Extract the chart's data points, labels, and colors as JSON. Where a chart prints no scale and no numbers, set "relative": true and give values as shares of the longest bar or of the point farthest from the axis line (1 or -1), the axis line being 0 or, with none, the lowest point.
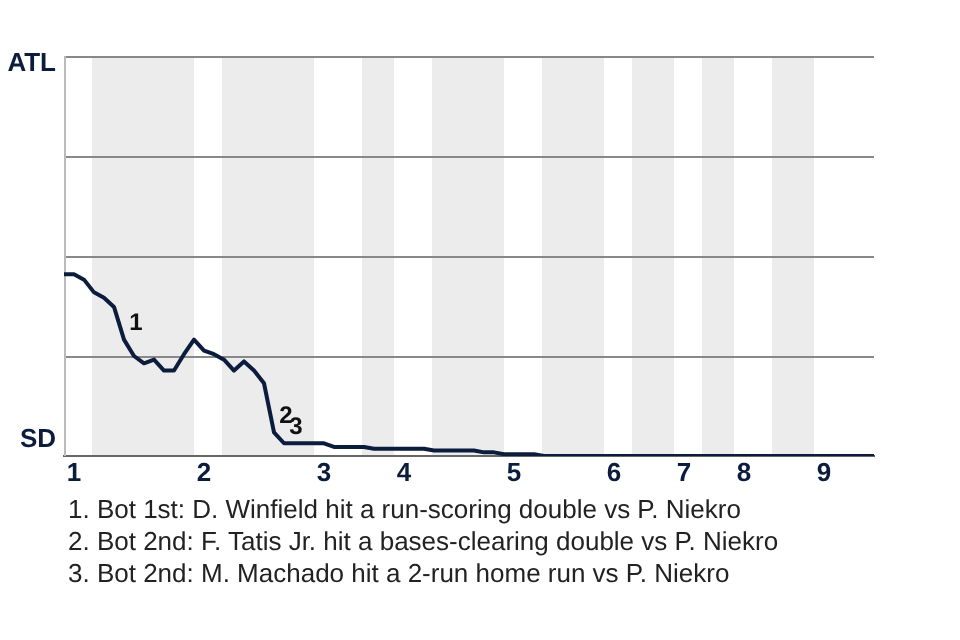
{
  "chart_data": {
    "type": "line",
    "relative": true,
    "categories": [
      null,
      "1",
      null,
      null,
      null,
      null,
      null,
      null,
      null,
      null,
      null,
      null,
      null,
      null,
      "2",
      null,
      null,
      null,
      null,
      null,
      null,
      null,
      null,
      null,
      null,
      null,
      "3",
      null,
      null,
      null,
      null,
      null,
      null,
      null,
      "4",
      null,
      null,
      null,
      null,
      null,
      null,
      null,
      null,
      null,
      null,
      "5",
      null,
      null,
      null,
      null,
      null,
      null,
      null,
      null,
      null,
      "6",
      null,
      null,
      null,
      null,
      null,
      null,
      "7",
      null,
      null,
      null,
      null,
      null,
      "8",
      null,
      null,
      null,
      null,
      null,
      null,
      null,
      "9",
      null,
      null,
      null,
      null,
      null
    ],
    "series": [
      {
        "color": "#0c1c3c",
        "values": [
          1,
          1,
          0.97,
          0.9,
          0.87,
          0.82,
          0.64,
          0.55,
          0.51,
          0.53,
          0.47,
          0.47,
          0.56,
          0.64,
          0.58,
          0.56,
          0.53,
          0.47,
          0.52,
          0.47,
          0.4,
          0.13,
          0.07,
          0.07,
          0.07,
          0.07,
          0.07,
          0.05,
          0.05,
          0.05,
          0.05,
          0.04,
          0.04,
          0.04,
          0.04,
          0.04,
          0.04,
          0.03,
          0.03,
          0.03,
          0.03,
          0.03,
          0.02,
          0.02,
          0.01,
          0.01,
          0.01,
          0.01,
          0,
          0,
          0,
          0,
          0,
          0,
          0,
          0,
          0,
          0,
          0,
          0,
          0,
          0,
          0,
          0,
          0,
          0,
          0,
          0,
          0,
          0,
          0,
          0,
          0,
          0,
          0,
          0,
          0,
          0,
          0,
          0,
          0,
          0
        ]
      }
    ],
    "ref_lines": [
      {
        "axis": "y",
        "value": 0.55,
        "color": "#888888"
      },
      {
        "axis": "y",
        "value": 1.1,
        "color": "#888888"
      },
      {
        "axis": "y",
        "value": 1.65,
        "color": "#888888"
      },
      {
        "axis": "y",
        "value": 2.2,
        "color": "#888888",
        "label": "ATL"
      }
    ],
    "legend": false,
    "marker": "none",
    "line_style": "solid",
    "annotations": [
      "SD",
      {
        "text": "1",
        "y": 0.64
      },
      {
        "text": "2",
        "y": 0.13
      },
      {
        "text": "3",
        "y": 0.07
      },
      "1. Bot 1st: D. Winfield hit a run-scoring double vs P. Niekro",
      "2. Bot 2nd: F. Tatis Jr. hit a bases-clearing double vs P. Niekro",
      "3. Bot 2nd: M. Machado hit a 2-run home run vs P. Niekro"
    ]
  }
}
